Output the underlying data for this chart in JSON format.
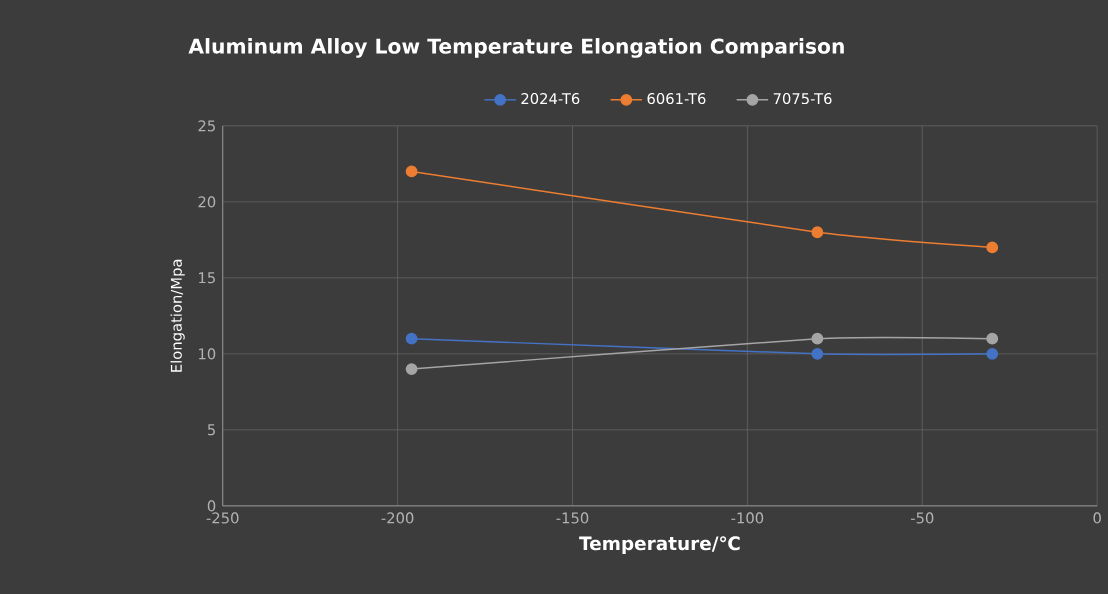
{
  "chart_data": {
    "type": "line",
    "title": "Aluminum Alloy Low Temperature Elongation Comparison",
    "xlabel": "Temperature/℃",
    "ylabel": "Elongation/Mpa",
    "x": [
      -196,
      -80,
      -30
    ],
    "series": [
      {
        "name": "2024-T6",
        "color": "#4472c4",
        "values": [
          11,
          10,
          10
        ]
      },
      {
        "name": "6061-T6",
        "color": "#ed7d31",
        "values": [
          22,
          18,
          17
        ]
      },
      {
        "name": "7075-T6",
        "color": "#a5a5a5",
        "values": [
          9,
          11,
          11
        ]
      }
    ],
    "xlim": [
      -250,
      0
    ],
    "xticks": [
      -250,
      -200,
      -150,
      -100,
      -50,
      0
    ],
    "ylim": [
      0,
      25
    ],
    "yticks": [
      0,
      5,
      10,
      15,
      20,
      25
    ],
    "grid": true,
    "legend": "top",
    "marker": "circle",
    "line_style": "solid"
  }
}
